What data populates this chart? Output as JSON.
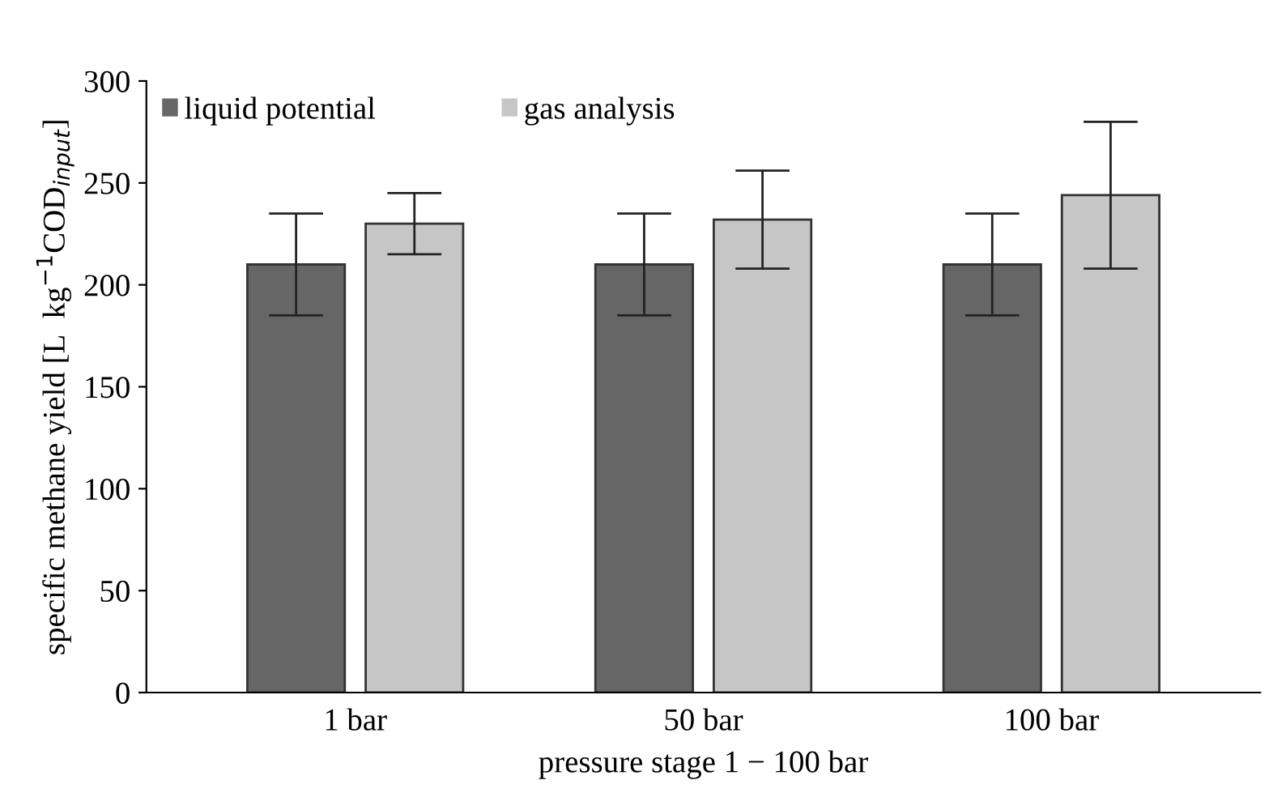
{
  "chart_data": {
    "type": "bar",
    "xlabel": "pressure stage 1 − 100 bar",
    "ylabel": "specific methane yield [L  kg$^{−1}$COD$_{input}$]",
    "categories": [
      "1 bar",
      "50 bar",
      "100 bar"
    ],
    "series": [
      {
        "name": "liquid potential",
        "color": "#666666",
        "values": [
          210,
          210,
          210
        ],
        "errors": [
          25,
          25,
          25
        ]
      },
      {
        "name": "gas analysis",
        "color": "#c6c6c6",
        "values": [
          230,
          232,
          244
        ],
        "errors": [
          15,
          24,
          36
        ]
      }
    ],
    "ylim": [
      0,
      300
    ],
    "yticks": [
      0,
      50,
      100,
      150,
      200,
      250,
      300
    ],
    "grid": false,
    "legend": "top left"
  }
}
